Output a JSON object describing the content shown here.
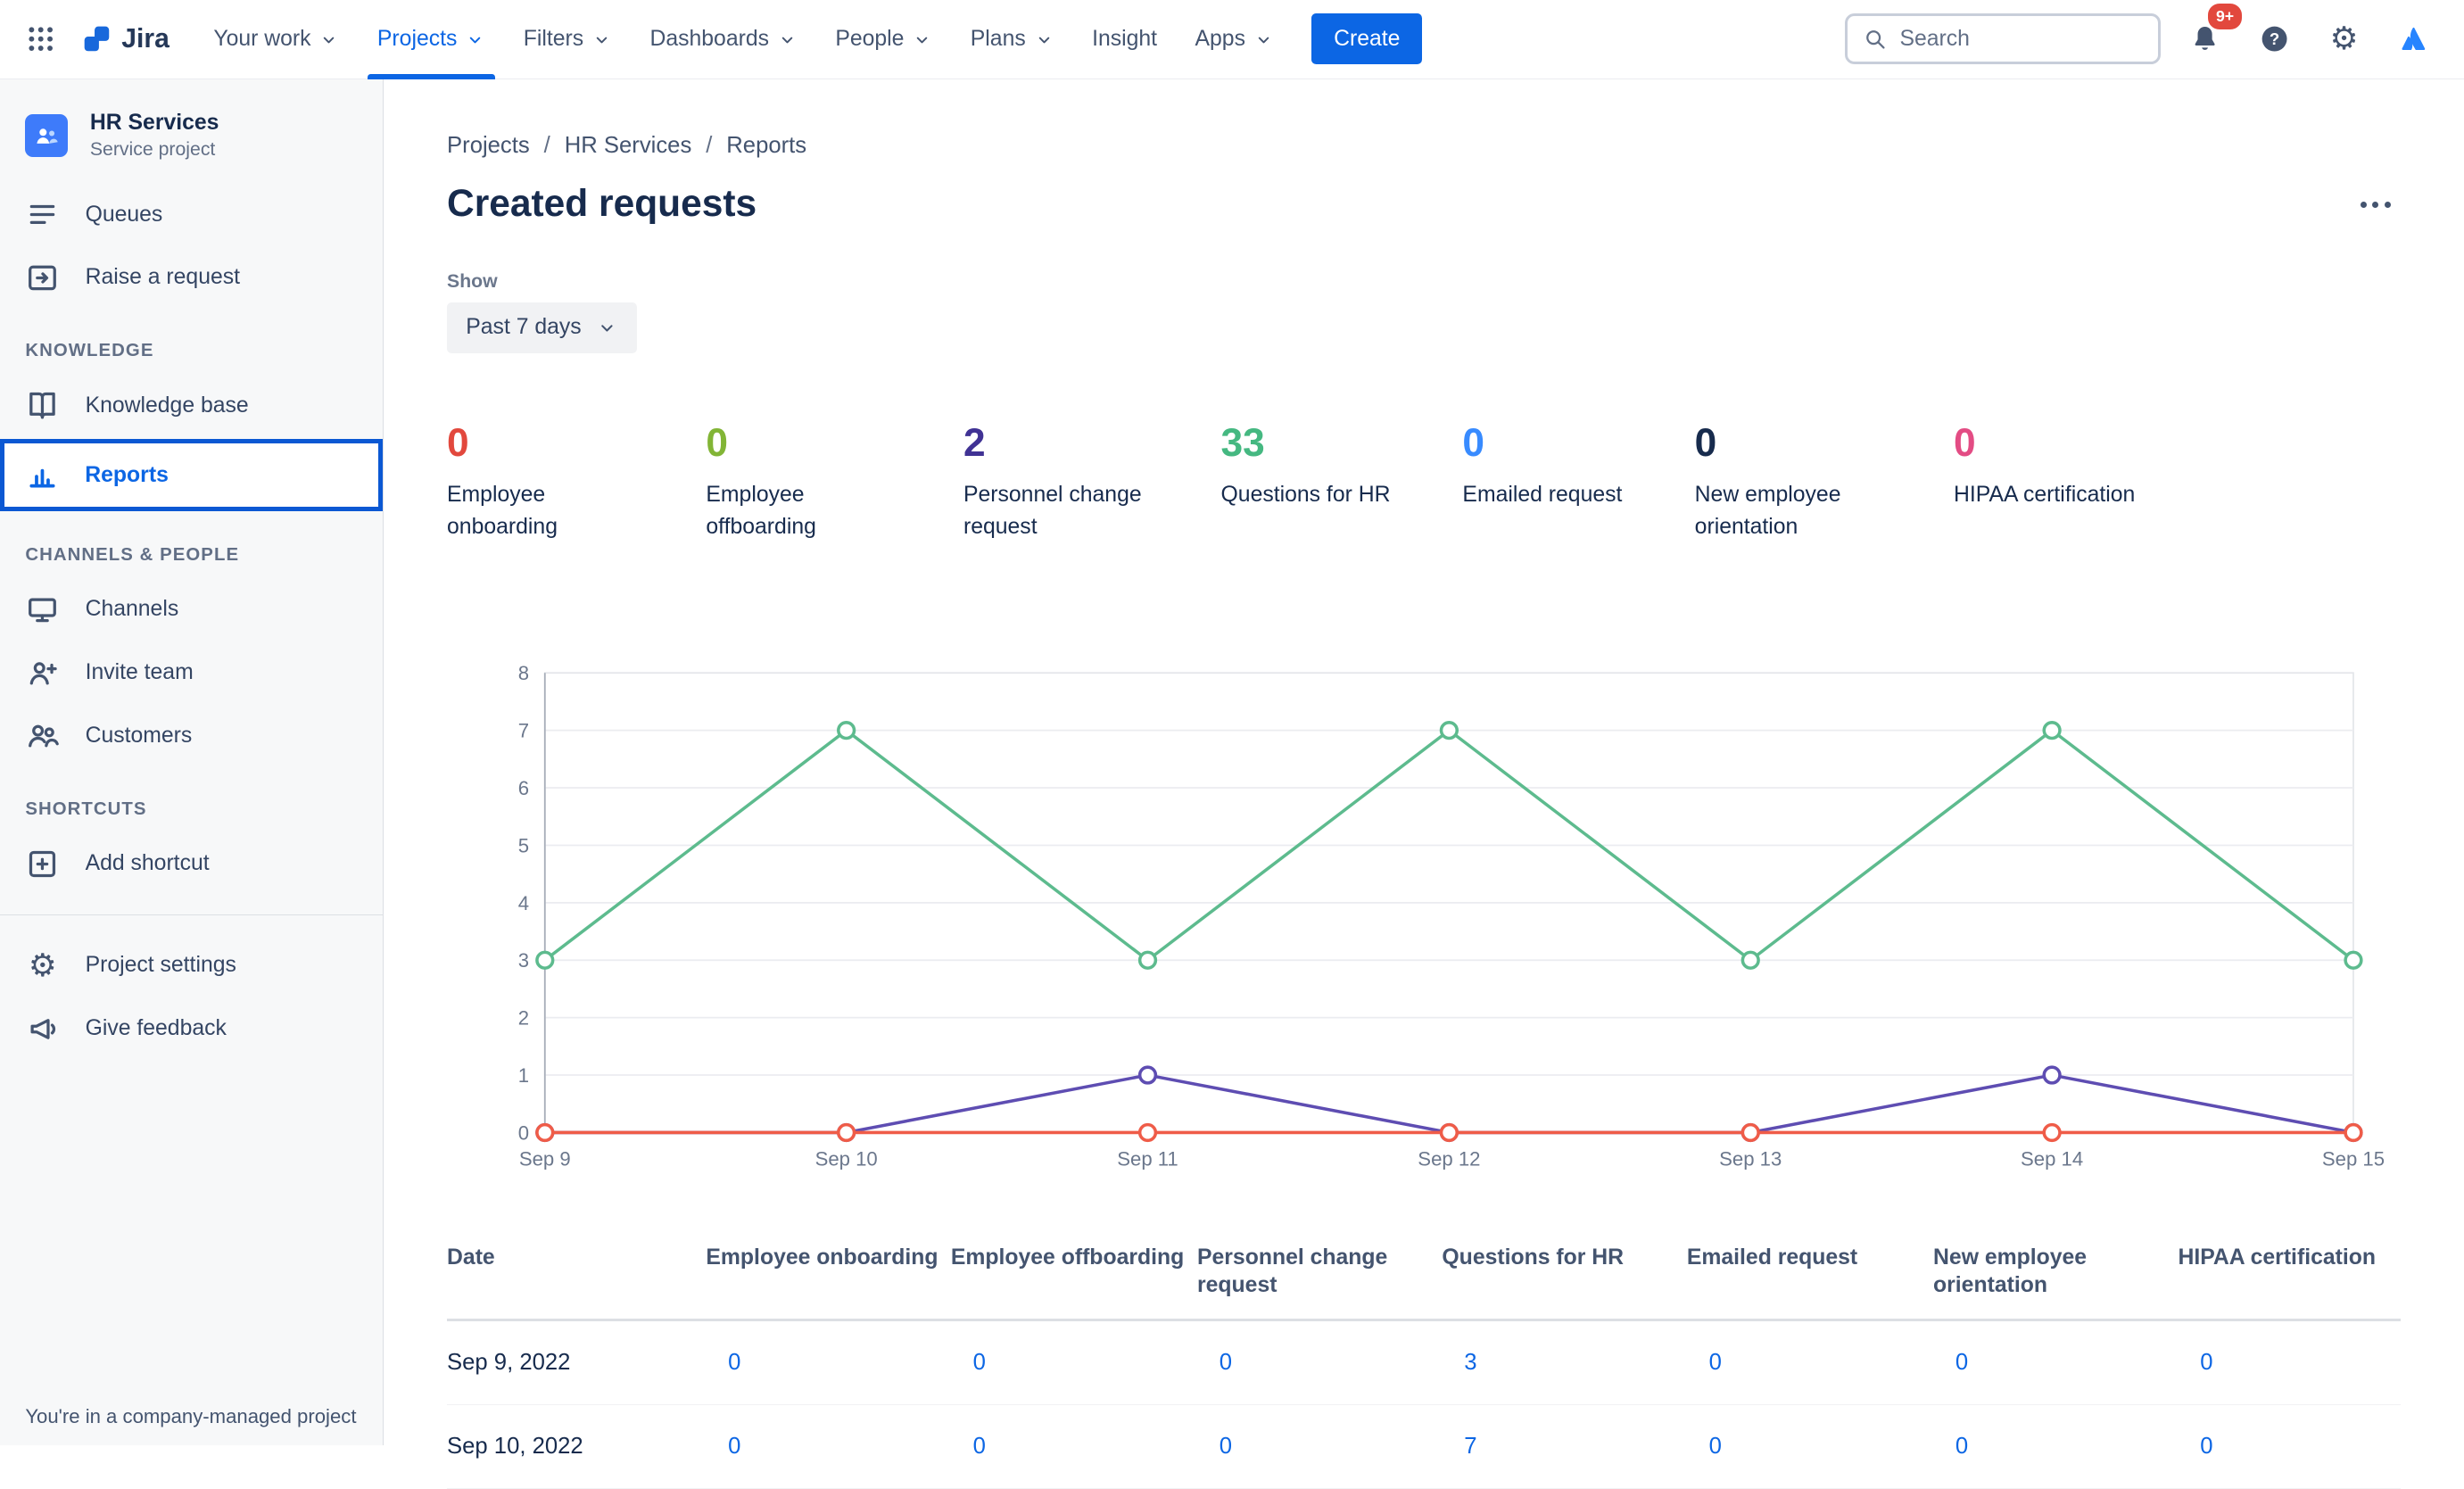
{
  "navbar": {
    "app_name": "Jira",
    "items": [
      {
        "label": "Your work"
      },
      {
        "label": "Projects"
      },
      {
        "label": "Filters"
      },
      {
        "label": "Dashboards"
      },
      {
        "label": "People"
      },
      {
        "label": "Plans"
      },
      {
        "label": "Insight"
      },
      {
        "label": "Apps"
      }
    ],
    "create_label": "Create",
    "search_placeholder": "Search",
    "notification_badge": "9+"
  },
  "icons": {
    "gear": "⚙"
  },
  "sidebar": {
    "project_name": "HR Services",
    "project_subtitle": "Service project",
    "items": {
      "queues": "Queues",
      "raise_request": "Raise a request",
      "knowledge_base": "Knowledge base",
      "reports": "Reports",
      "channels": "Channels",
      "invite_team": "Invite team",
      "customers": "Customers",
      "add_shortcut": "Add shortcut",
      "project_settings": "Project settings",
      "give_feedback": "Give feedback"
    },
    "headings": {
      "knowledge": "KNOWLEDGE",
      "channels_people": "CHANNELS & PEOPLE",
      "shortcuts": "SHORTCUTS"
    },
    "bottom_note": "You're in a company-managed project"
  },
  "breadcrumb": {
    "items": [
      "Projects",
      "HR Services",
      "Reports"
    ]
  },
  "page": {
    "title": "Created requests",
    "show_label": "Show",
    "range_value": "Past 7 days"
  },
  "stats": [
    {
      "value": "0",
      "label": "Employee onboarding",
      "color": "#E2483D"
    },
    {
      "value": "0",
      "label": "Employee offboarding",
      "color": "#82B536"
    },
    {
      "value": "2",
      "label": "Personnel change request",
      "color": "#403294"
    },
    {
      "value": "33",
      "label": "Questions for HR",
      "color": "#45B881"
    },
    {
      "value": "0",
      "label": "Emailed request",
      "color": "#388BFF"
    },
    {
      "value": "0",
      "label": "New employee orientation",
      "color": "#172B4D"
    },
    {
      "value": "0",
      "label": "HIPAA certification",
      "color": "#E34C84"
    }
  ],
  "chart_data": {
    "type": "line",
    "title": "Created requests",
    "x": [
      "Sep 9",
      "Sep 10",
      "Sep 11",
      "Sep 12",
      "Sep 13",
      "Sep 14",
      "Sep 15"
    ],
    "ylim": [
      0,
      8
    ],
    "yticks": [
      0,
      1,
      2,
      3,
      4,
      5,
      6,
      7,
      8
    ],
    "grid": true,
    "legend_position": "none",
    "series": [
      {
        "name": "Questions for HR",
        "color": "#5DBB8E",
        "values": [
          3,
          7,
          3,
          7,
          3,
          7,
          3
        ]
      },
      {
        "name": "Personnel change request",
        "color": "#5E4DB2",
        "values": [
          0,
          0,
          1,
          0,
          0,
          1,
          0
        ]
      },
      {
        "name": "Employee onboarding",
        "color": "#EF5C48",
        "values": [
          0,
          0,
          0,
          0,
          0,
          0,
          0
        ]
      }
    ]
  },
  "table": {
    "headers": [
      "Date",
      "Employee onboarding",
      "Employee offboarding",
      "Personnel change request",
      "Questions for HR",
      "Emailed request",
      "New employee orientation",
      "HIPAA certification"
    ],
    "rows": [
      {
        "date": "Sep 9, 2022",
        "values": [
          "0",
          "0",
          "0",
          "3",
          "0",
          "0",
          "0"
        ]
      },
      {
        "date": "Sep 10, 2022",
        "values": [
          "0",
          "0",
          "0",
          "7",
          "0",
          "0",
          "0"
        ]
      }
    ]
  }
}
